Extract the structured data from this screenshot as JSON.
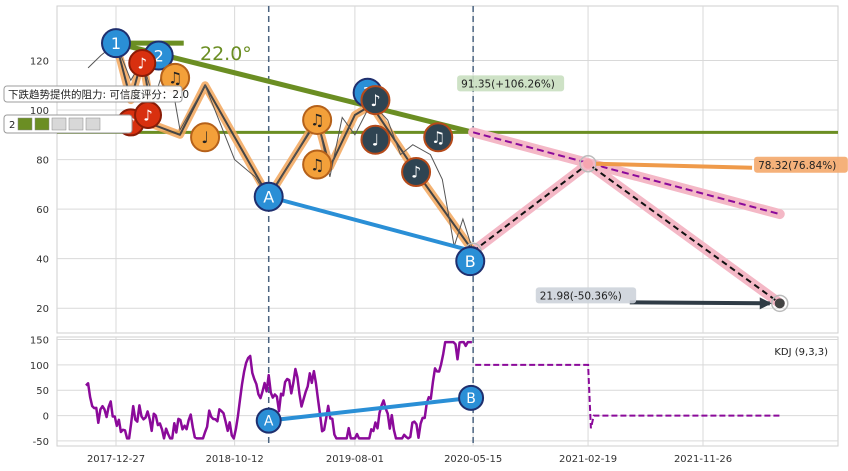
{
  "chart_data": [
    {
      "type": "line",
      "panel": "price",
      "ylim": [
        10,
        142
      ],
      "yticks": [
        20,
        40,
        60,
        80,
        100,
        120
      ],
      "grid": true,
      "price_series": [
        {
          "x": "2017-10-20",
          "y": 117
        },
        {
          "x": "2017-11-20",
          "y": 122
        },
        {
          "x": "2017-12-27",
          "y": 127
        },
        {
          "x": "2018-02-01",
          "y": 112
        },
        {
          "x": "2018-03-01",
          "y": 120
        },
        {
          "x": "2018-03-29",
          "y": 104
        },
        {
          "x": "2018-05-01",
          "y": 121
        },
        {
          "x": "2018-06-01",
          "y": 92
        },
        {
          "x": "2018-08-01",
          "y": 110
        },
        {
          "x": "2018-10-12",
          "y": 80
        },
        {
          "x": "2018-12-01",
          "y": 73
        },
        {
          "x": "2019-01-03",
          "y": 64
        },
        {
          "x": "2019-03-01",
          "y": 80
        },
        {
          "x": "2019-05-01",
          "y": 97
        },
        {
          "x": "2019-06-01",
          "y": 73
        },
        {
          "x": "2019-07-01",
          "y": 97
        },
        {
          "x": "2019-08-01",
          "y": 90
        },
        {
          "x": "2019-09-10",
          "y": 103
        },
        {
          "x": "2019-10-20",
          "y": 96
        },
        {
          "x": "2019-11-20",
          "y": 82
        },
        {
          "x": "2019-12-20",
          "y": 86
        },
        {
          "x": "2020-02-01",
          "y": 82
        },
        {
          "x": "2020-03-01",
          "y": 72
        },
        {
          "x": "2020-03-30",
          "y": 45
        },
        {
          "x": "2020-04-20",
          "y": 56
        },
        {
          "x": "2020-05-15",
          "y": 43
        }
      ],
      "zigzag": [
        {
          "x": "2017-12-27",
          "y": 127
        },
        {
          "x": "2018-02-01",
          "y": 104
        },
        {
          "x": "2018-03-01",
          "y": 121
        },
        {
          "x": "2018-03-29",
          "y": 94
        },
        {
          "x": "2018-06-01",
          "y": 90
        },
        {
          "x": "2018-08-01",
          "y": 110
        },
        {
          "x": "2019-01-03",
          "y": 65
        },
        {
          "x": "2019-05-01",
          "y": 96
        },
        {
          "x": "2019-06-01",
          "y": 77
        },
        {
          "x": "2019-08-01",
          "y": 98
        },
        {
          "x": "2019-09-10",
          "y": 102
        },
        {
          "x": "2019-12-20",
          "y": 77
        },
        {
          "x": "2020-05-15",
          "y": 43
        }
      ],
      "resistance_line": {
        "from": {
          "x": "2017-12-27",
          "y": 127
        },
        "to": {
          "x": "2020-05-15",
          "y": 91
        },
        "angle_label": "22.0°"
      },
      "horizontal_level": 91,
      "horizontal_top_segment": {
        "from": "2017-12-27",
        "to": "2018-06-10",
        "y": 127
      },
      "projection_upper": {
        "from": {
          "x": "2020-05-15",
          "y": 91
        },
        "to": {
          "x": "2022-06-01",
          "y": 58
        }
      },
      "projection_path": [
        {
          "x": "2020-05-15",
          "y": 43
        },
        {
          "x": "2021-02-19",
          "y": 78.32
        },
        {
          "x": "2022-06-01",
          "y": 21.98
        }
      ],
      "ab_line": {
        "from": {
          "x": "2019-01-03",
          "y": 65
        },
        "to": {
          "x": "2020-05-15",
          "y": 43
        }
      },
      "vlines": [
        "2019-01-03",
        "2020-05-15"
      ],
      "annotations": [
        {
          "x": "2020-05-15",
          "y": 91,
          "text": "91.35(+106.26%)",
          "tone": "green",
          "anchor": "above"
        },
        {
          "x": "2021-02-19",
          "y": 78.32,
          "text": "78.32(76.84%)",
          "tone": "orange",
          "anchor": "right"
        },
        {
          "x": "2022-06-01",
          "y": 21.98,
          "text": "21.98(-50.36%)",
          "tone": "slate",
          "anchor": "left"
        }
      ],
      "markers": [
        {
          "x": "2017-12-27",
          "y": 127,
          "label": "1",
          "style": "blue-num"
        },
        {
          "x": "2018-04-10",
          "y": 122,
          "label": "2",
          "style": "blue-num"
        },
        {
          "x": "2019-09-01",
          "y": 107,
          "label": "3",
          "style": "blue-num"
        },
        {
          "x": "2019-01-03",
          "y": 65,
          "label": "A",
          "style": "blue-num"
        },
        {
          "x": "2020-05-08",
          "y": 39,
          "label": "B",
          "style": "blue-num"
        },
        {
          "x": "2018-02-01",
          "y": 95,
          "label": "♪",
          "style": "red-note"
        },
        {
          "x": "2018-03-01",
          "y": 119,
          "label": "♪",
          "style": "red-note"
        },
        {
          "x": "2018-03-15",
          "y": 98,
          "label": "♪",
          "style": "red-note"
        },
        {
          "x": "2018-05-20",
          "y": 113,
          "label": "♫",
          "style": "orange-note"
        },
        {
          "x": "2018-08-01",
          "y": 89,
          "label": "♩",
          "style": "orange-note"
        },
        {
          "x": "2019-05-01",
          "y": 96,
          "label": "♫",
          "style": "orange-note"
        },
        {
          "x": "2019-05-01",
          "y": 78,
          "label": "♫",
          "style": "orange-note"
        },
        {
          "x": "2019-09-20",
          "y": 104,
          "label": "♪",
          "style": "dark-note"
        },
        {
          "x": "2019-09-20",
          "y": 88,
          "label": "♩",
          "style": "dark-note"
        },
        {
          "x": "2020-02-20",
          "y": 89,
          "label": "♫",
          "style": "dark-note"
        },
        {
          "x": "2019-12-28",
          "y": 75,
          "label": "♪",
          "style": "dark-note"
        }
      ],
      "tooltip": {
        "text": "下跌趋势提供的阻力: 可信度评分：2.0",
        "rating_prefix": "2"
      }
    },
    {
      "type": "line",
      "panel": "indicator",
      "series_label": "KDJ (9,3,3)",
      "ylim": [
        -60,
        155
      ],
      "yticks": [
        -50,
        0,
        50,
        100,
        150
      ],
      "xticks": [
        "2017-12-27",
        "2018-10-12",
        "2019-08-01",
        "2020-05-15",
        "2021-02-19",
        "2021-11-26"
      ],
      "projection": [
        {
          "x": "2020-05-20",
          "y": 100
        },
        {
          "x": "2021-02-19",
          "y": 100
        },
        {
          "x": "2021-02-26",
          "y": -25
        },
        {
          "x": "2021-03-05",
          "y": 0
        },
        {
          "x": "2022-06-01",
          "y": 0
        }
      ],
      "ab_line": {
        "from": {
          "x": "2019-01-03",
          "y": -10
        },
        "to": {
          "x": "2020-05-10",
          "y": 35
        }
      },
      "markers": [
        {
          "x": "2019-01-03",
          "y": -10,
          "label": "A"
        },
        {
          "x": "2020-05-10",
          "y": 35,
          "label": "B"
        }
      ]
    }
  ],
  "colors": {
    "purple": "#8b0a9a",
    "olive": "#6b8e23",
    "blue": "#2a8fd6",
    "orange_line": "#f2a65a",
    "pink": "#f4b8c6",
    "dark": "#2f3b45",
    "grid": "#d9d9d9",
    "vline": "#4a6380"
  }
}
